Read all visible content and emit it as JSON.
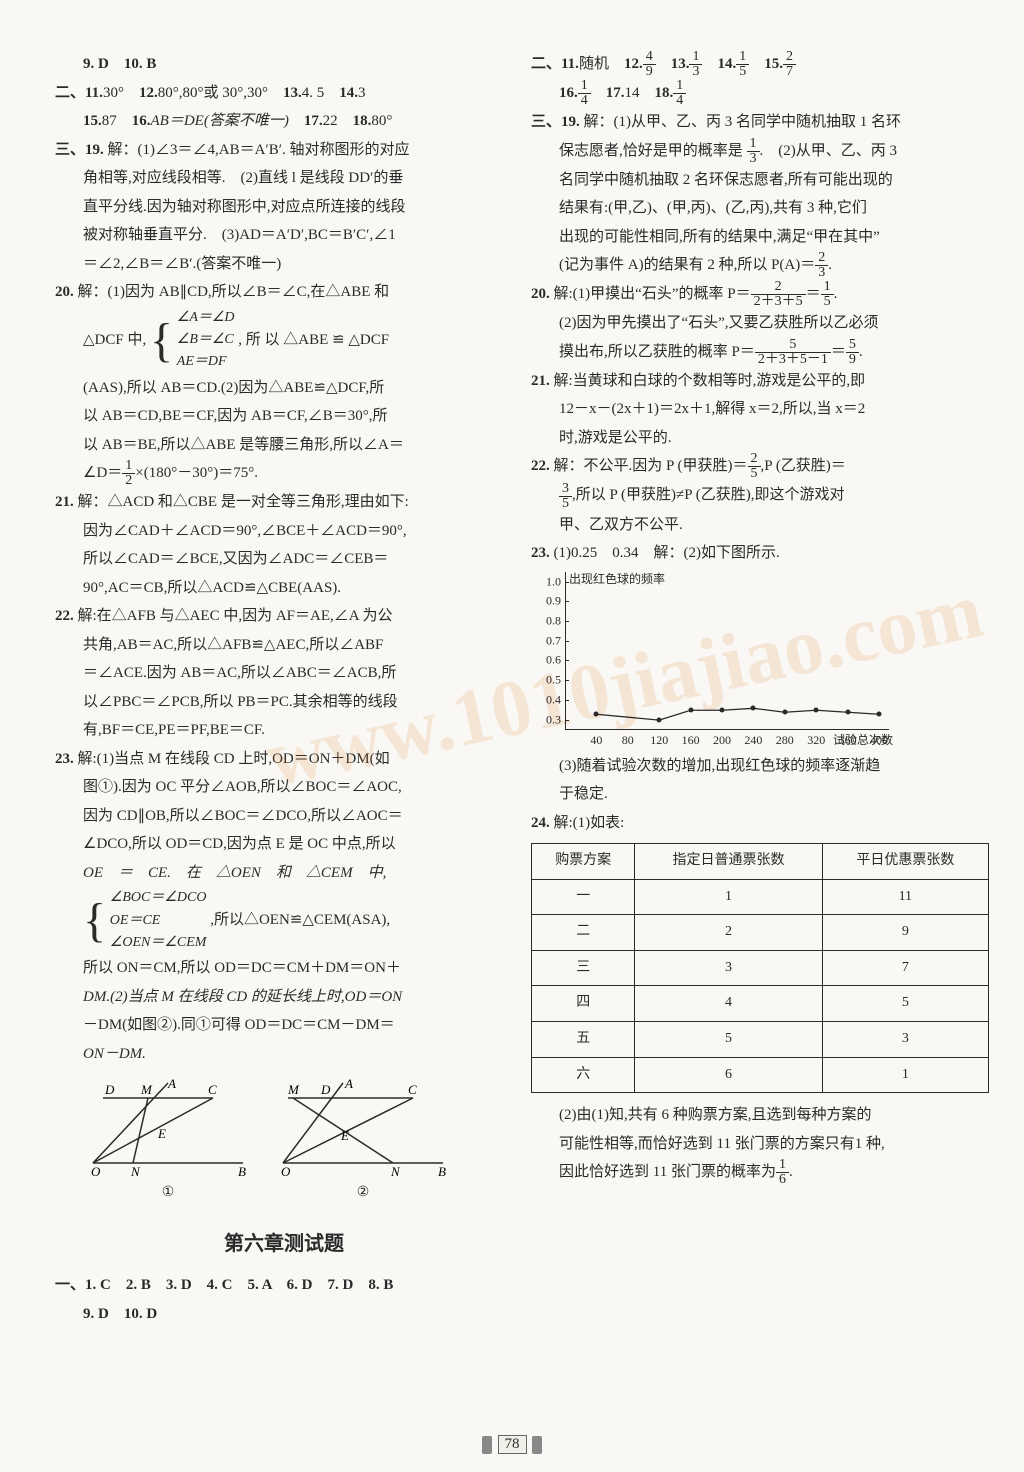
{
  "left": {
    "l0": "9. D　10. B",
    "l1a": "二、11.",
    "l1b": "30°",
    "l1c": "　12.",
    "l1d": "80°,80°或 30°,30°",
    "l1e": "　13.",
    "l1f": "4. 5",
    "l1g": "　14.",
    "l1h": "3",
    "l2a": "15.",
    "l2b": "87",
    "l2c": "　16.",
    "l2d": "AB＝DE(答案不唯一)",
    "l2e": "　17.",
    "l2f": "22",
    "l2g": "　18.",
    "l2h": "80°",
    "l3a": "三、19.",
    "l3b": " 解：(1)∠3＝∠4,AB＝A′B′. 轴对称图形的对应",
    "l4": "角相等,对应线段相等.　(2)直线 l 是线段 DD′的垂",
    "l5": "直平分线.因为轴对称图形中,对应点所连接的线段",
    "l6": "被对称轴垂直平分.　(3)AD＝A′D′,BC＝B′C′,∠1",
    "l7": "＝∠2,∠B＝∠B′.(答案不唯一)",
    "l8a": "20.",
    "l8b": " 解：(1)因为 AB∥CD,所以∠B＝∠C,在△ABE 和",
    "l9a": "△DCF 中,",
    "l9b": "∠A＝∠D",
    "l9c": "∠B＝∠C",
    "l9d": "AE＝DF",
    "l9e": ", 所 以 △ABE ≌ △DCF",
    "l10": "(AAS),所以 AB＝CD.(2)因为△ABE≌△DCF,所",
    "l11": "以 AB＝CD,BE＝CF,因为 AB＝CF,∠B＝30°,所",
    "l12": "以 AB＝BE,所以△ABE 是等腰三角形,所以∠A＝",
    "l13a": "∠D＝",
    "l13b": "1",
    "l13c": "2",
    "l13d": "×(180°－30°)＝75°.",
    "l14a": "21.",
    "l14b": " 解：△ACD 和△CBE 是一对全等三角形,理由如下:",
    "l15": "因为∠CAD＋∠ACD＝90°,∠BCE＋∠ACD＝90°,",
    "l16": "所以∠CAD＝∠BCE,又因为∠ADC＝∠CEB＝",
    "l17": "90°,AC＝CB,所以△ACD≌△CBE(AAS).",
    "l18a": "22.",
    "l18b": " 解:在△AFB 与△AEC 中,因为 AF＝AE,∠A 为公",
    "l19": "共角,AB＝AC,所以△AFB≌△AEC,所以∠ABF",
    "l20": "＝∠ACE.因为 AB＝AC,所以∠ABC＝∠ACB,所",
    "l21": "以∠PBC＝∠PCB,所以 PB＝PC.其余相等的线段",
    "l22": "有,BF＝CE,PE＝PF,BE＝CF.",
    "l23a": "23.",
    "l23b": " 解:(1)当点 M 在线段 CD 上时,OD＝ON＋DM(如",
    "l24": "图①).因为 OC 平分∠AOB,所以∠BOC＝∠AOC,",
    "l25": "因为 CD∥OB,所以∠BOC＝∠DCO,所以∠AOC＝",
    "l26": "∠DCO,所以 OD＝CD,因为点 E 是 OC 中点,所以",
    "l27": "OE　＝　CE.　在　△OEN　和　△CEM　中,",
    "l28a": "∠BOC＝∠DCO",
    "l28b": "OE＝CE",
    "l28c": "∠OEN＝∠CEM",
    "l28d": ",所以△OEN≌△CEM(ASA),",
    "l29": "所以 ON＝CM,所以 OD＝DC＝CM＋DM＝ON＋",
    "l30": "DM.(2)当点 M 在线段 CD 的延长线上时,OD＝ON",
    "l31": "－DM(如图②).同①可得 OD＝DC＝CM－DM＝",
    "l32": "ON－DM.",
    "diag1": "①",
    "diag2": "②",
    "heading": "第六章测试题",
    "mc1": "一、1. C　2. B　3. D　4. C　5. A　6. D　7. D　8. B",
    "mc2": "9. D　10. D"
  },
  "right": {
    "r0a": "二、11.",
    "r0b": "随机",
    "r0c": "　12.",
    "f12n": "4",
    "f12d": "9",
    "r0d": "　13.",
    "f13n": "1",
    "f13d": "3",
    "r0e": "　14.",
    "f14n": "1",
    "f14d": "5",
    "r0f": "　15.",
    "f15n": "2",
    "f15d": "7",
    "r1a": "16.",
    "f16n": "1",
    "f16d": "4",
    "r1b": "　17.",
    "r1c": "14",
    "r1d": "　18.",
    "f18n": "1",
    "f18d": "4",
    "r2a": "三、19.",
    "r2b": " 解：(1)从甲、乙、丙 3 名同学中随机抽取 1 名环",
    "r3a": "保志愿者,恰好是甲的概率是 ",
    "r3n": "1",
    "r3d": "3",
    "r3b": ".　(2)从甲、乙、丙 3",
    "r4": "名同学中随机抽取 2 名环保志愿者,所有可能出现的",
    "r5": "结果有:(甲,乙)、(甲,丙)、(乙,丙),共有 3 种,它们",
    "r6": "出现的可能性相同,所有的结果中,满足“甲在其中”",
    "r7a": "(记为事件 A)的结果有 2 种,所以 P(A)＝",
    "r7n": "2",
    "r7d": "3",
    "r7b": ".",
    "r8a": "20.",
    "r8b": " 解:(1)甲摸出“石头”的概率 P＝",
    "f20an": "2",
    "f20ad": "2＋3＋5",
    "r8c": "＝",
    "f20bn": "1",
    "f20bd": "5",
    "r8d": ".",
    "r9": "(2)因为甲先摸出了“石头”,又要乙获胜所以乙必须",
    "r10a": "摸出布,所以乙获胜的概率 P＝",
    "f21an": "5",
    "f21ad": "2＋3＋5－1",
    "r10b": "＝",
    "f21bn": "5",
    "f21bd": "9",
    "r10c": ".",
    "r11a": "21.",
    "r11b": " 解:当黄球和白球的个数相等时,游戏是公平的,即",
    "r12": "12－x－(2x＋1)＝2x＋1,解得 x＝2,所以,当 x＝2",
    "r13": "时,游戏是公平的.",
    "r14a": "22.",
    "r14b": " 解：不公平.因为 P (甲获胜)＝",
    "f22an": "2",
    "f22ad": "5",
    "r14c": ",P (乙获胜)＝",
    "r15a": "",
    "f22bn": "3",
    "f22bd": "5",
    "r15b": ",所以 P (甲获胜)≠P (乙获胜),即这个游戏对",
    "r16": "甲、乙双方不公平.",
    "r17a": "23.",
    "r17b": " (1)0.25　0.34　解：(2)如下图所示.",
    "chart": {
      "title": "出现红色球的频率",
      "xtitle": "试验总次数",
      "y_ticks": [
        "1.0",
        "0.9",
        "0.8",
        "0.7",
        "0.6",
        "0.5",
        "0.4",
        "0.3"
      ],
      "x_ticks": [
        "40",
        "80",
        "120",
        "160",
        "200",
        "240",
        "280",
        "320",
        "360",
        "400"
      ],
      "points": [
        {
          "x": 40,
          "y": 0.33
        },
        {
          "x": 120,
          "y": 0.3
        },
        {
          "x": 160,
          "y": 0.35
        },
        {
          "x": 200,
          "y": 0.35
        },
        {
          "x": 240,
          "y": 0.36
        },
        {
          "x": 280,
          "y": 0.34
        },
        {
          "x": 320,
          "y": 0.35
        },
        {
          "x": 360,
          "y": 0.34
        },
        {
          "x": 400,
          "y": 0.33
        }
      ],
      "xlim": [
        0,
        400
      ],
      "ylim": [
        0.25,
        1.0
      ],
      "line_color": "#2a2a2a"
    },
    "r18": "(3)随着试验次数的增加,出现红色球的频率逐渐趋",
    "r19": "于稳定.",
    "r20a": "24.",
    "r20b": " 解:(1)如表:",
    "table": {
      "headers": [
        "购票方案",
        "指定日普通票张数",
        "平日优惠票张数"
      ],
      "rows": [
        [
          "一",
          "1",
          "11"
        ],
        [
          "二",
          "2",
          "9"
        ],
        [
          "三",
          "3",
          "7"
        ],
        [
          "四",
          "4",
          "5"
        ],
        [
          "五",
          "5",
          "3"
        ],
        [
          "六",
          "6",
          "1"
        ]
      ]
    },
    "r21": "(2)由(1)知,共有 6 种购票方案,且选到每种方案的",
    "r22": "可能性相等,而恰好选到 11 张门票的方案只有1 种,",
    "r23a": "因此恰好选到 11 张门票的概率为",
    "f23n": "1",
    "f23d": "6",
    "r23b": "."
  },
  "pagenum": "78",
  "watermark1": "www.1010jiajiao.com"
}
